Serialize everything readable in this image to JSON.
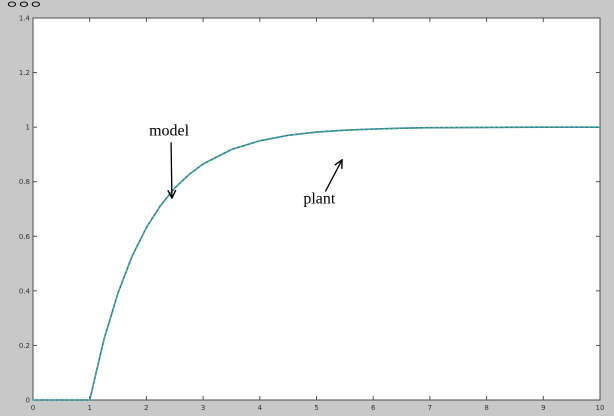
{
  "corner_text": "ᄋᄋᄋ",
  "chart_data": {
    "type": "line",
    "x_ticks": [
      0,
      1,
      2,
      3,
      4,
      5,
      6,
      7,
      8,
      9,
      10
    ],
    "y_ticks": [
      0,
      0.2,
      0.4,
      0.6,
      0.8,
      1,
      1.2,
      1.4
    ],
    "x_tick_labels": [
      "0",
      "1",
      "2",
      "3",
      "4",
      "5",
      "6",
      "7",
      "8",
      "9",
      "10"
    ],
    "y_tick_labels": [
      "0",
      "0.2",
      "0.4",
      "0.6",
      "0.8",
      "1",
      "1.2",
      "1.4"
    ],
    "xlim": [
      0,
      10
    ],
    "ylim": [
      0,
      1.4
    ],
    "grid": false,
    "series": [
      {
        "color": "#2b6fb5",
        "x": [
          0,
          1,
          1.25,
          1.5,
          1.75,
          2,
          2.25,
          2.5,
          2.75,
          3,
          3.5,
          4,
          4.5,
          5,
          5.5,
          6,
          6.5,
          7,
          8,
          9,
          10
        ],
        "y": [
          0,
          0,
          0.221,
          0.393,
          0.528,
          0.632,
          0.713,
          0.777,
          0.826,
          0.865,
          0.918,
          0.95,
          0.97,
          0.982,
          0.989,
          0.993,
          0.996,
          0.998,
          0.999,
          1.0,
          1.0
        ]
      },
      {
        "color": "#45b86a",
        "x": [
          0,
          1,
          1.25,
          1.5,
          1.75,
          2,
          2.25,
          2.5,
          2.75,
          3,
          3.5,
          4,
          4.5,
          5,
          5.5,
          6,
          6.5,
          7,
          8,
          9,
          10
        ],
        "y": [
          0,
          0,
          0.221,
          0.393,
          0.528,
          0.632,
          0.713,
          0.777,
          0.826,
          0.865,
          0.918,
          0.95,
          0.97,
          0.982,
          0.989,
          0.993,
          0.996,
          0.998,
          0.999,
          1.0,
          1.0
        ]
      }
    ],
    "annotations": [
      {
        "text": "model",
        "x": 2.4,
        "y": 0.97,
        "target_x": 2.45,
        "target_y": 0.74
      },
      {
        "text": "plant",
        "x": 5.05,
        "y": 0.72,
        "target_x": 5.45,
        "target_y": 0.88
      }
    ]
  }
}
